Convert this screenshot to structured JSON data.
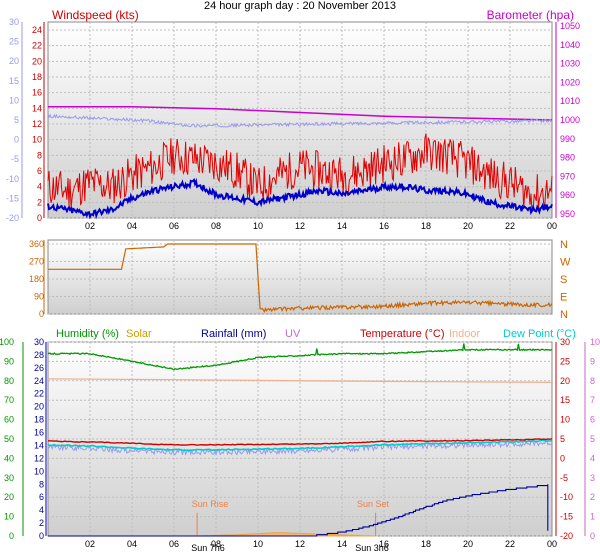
{
  "title": "24 hour graph day : 20 November 2013",
  "colors": {
    "wind": "#e00000",
    "gust_line": "#ff0000",
    "wind_avg": "#0000cc",
    "baro": "#cc00cc",
    "temp_axis_left": "#9999ee",
    "dir": "#cc6600",
    "humidity": "#009900",
    "solar": "#c8a000",
    "rain": "#000099",
    "uv": "#cc66cc",
    "temperature": "#cc0000",
    "indoor": "#f0b090",
    "dewpoint": "#00cccc",
    "feels": "#9999ee",
    "sun_marker": "#f08040"
  },
  "x_ticks": [
    "02",
    "04",
    "06",
    "08",
    "10",
    "12",
    "14",
    "16",
    "18",
    "20",
    "22",
    "00"
  ],
  "panel1": {
    "legend_left": "Windspeed (kts)",
    "legend_right": "Barometer (hpa)",
    "left_outer_ticks": [
      "-20",
      "-15",
      "-10",
      "-5",
      "0",
      "5",
      "10",
      "15",
      "20",
      "25",
      "30"
    ],
    "left_inner_ticks": [
      "0",
      "2",
      "4",
      "6",
      "8",
      "10",
      "12",
      "14",
      "16",
      "18",
      "20",
      "22",
      "24"
    ],
    "right_ticks": [
      "950",
      "960",
      "970",
      "980",
      "990",
      "1000",
      "1010",
      "1020",
      "1030",
      "1040",
      "1050"
    ]
  },
  "panel2": {
    "left_ticks": [
      "0",
      "90",
      "180",
      "270",
      "360"
    ],
    "right_ticks": [
      "N",
      "E",
      "S",
      "W",
      "N"
    ]
  },
  "panel3": {
    "legend": [
      "Humidity (%)",
      "Solar",
      "Rainfall (mm)",
      "UV",
      "Temperature (°C)",
      "Indoor",
      "Dew Point (°C)"
    ],
    "left_outer_ticks": [
      "0",
      "10",
      "20",
      "30",
      "40",
      "50",
      "60",
      "70",
      "80",
      "90",
      "100"
    ],
    "left_inner_ticks": [
      "0",
      "2",
      "4",
      "6",
      "8",
      "10",
      "12",
      "14",
      "16",
      "18",
      "20",
      "22",
      "24",
      "26",
      "28",
      "30"
    ],
    "right_inner_ticks": [
      "-20",
      "-15",
      "-10",
      "-5",
      "0",
      "5",
      "10",
      "15",
      "20",
      "25",
      "30"
    ],
    "right_outer_ticks": [
      "0",
      "1",
      "2",
      "3",
      "4",
      "5",
      "6",
      "7",
      "8",
      "9",
      "10"
    ],
    "sunrise_label": "Sun Rise",
    "sunset_label": "Sun Set",
    "sunrise_time": "Sun 7h6",
    "sunset_time": "Sun 3h6"
  },
  "chart_data": [
    {
      "type": "line",
      "x_unit": "hour of day",
      "series": [
        {
          "name": "Windspeed (kts)",
          "x": [
            0,
            1,
            2,
            3,
            4,
            5,
            6,
            7,
            8,
            9,
            10,
            11,
            12,
            13,
            14,
            15,
            16,
            17,
            18,
            19,
            20,
            21,
            22,
            23,
            24
          ],
          "y": [
            4,
            3.5,
            4.5,
            4,
            5.5,
            6.5,
            8,
            7.5,
            7,
            6,
            4,
            5.5,
            6.5,
            6,
            5.5,
            6,
            7,
            7.5,
            8.5,
            8,
            7,
            5.5,
            4.5,
            3,
            3.5
          ]
        },
        {
          "name": "Wind average (kts)",
          "x": [
            0,
            1,
            2,
            3,
            4,
            5,
            6,
            7,
            8,
            9,
            10,
            11,
            12,
            13,
            14,
            15,
            16,
            17,
            18,
            19,
            20,
            21,
            22,
            23,
            24
          ],
          "y": [
            1.5,
            1,
            0.5,
            1,
            2.5,
            3.5,
            4,
            4.5,
            3,
            2.5,
            2,
            2.5,
            3,
            3.5,
            3,
            3.5,
            4,
            4,
            3.5,
            3.5,
            3,
            2,
            1.5,
            1,
            1.5
          ]
        },
        {
          "name": "Barometer (hpa)",
          "x": [
            0,
            4,
            8,
            12,
            16,
            20,
            24
          ],
          "y": [
            1007,
            1007,
            1006,
            1004,
            1002,
            1001,
            1000
          ]
        }
      ],
      "ylim_left": [
        0,
        24
      ],
      "ylim_right": [
        950,
        1050
      ]
    },
    {
      "type": "line",
      "x_unit": "hour of day",
      "series": [
        {
          "name": "Wind direction (deg)",
          "x": [
            0,
            3.5,
            3.7,
            5.5,
            5.7,
            9.9,
            10.1,
            12,
            14,
            16,
            18,
            20,
            22,
            24
          ],
          "y": [
            230,
            230,
            335,
            345,
            360,
            360,
            20,
            30,
            35,
            40,
            55,
            60,
            50,
            45
          ]
        }
      ],
      "ylim": [
        0,
        360
      ]
    },
    {
      "type": "line",
      "x_unit": "hour of day",
      "series": [
        {
          "name": "Humidity (%)",
          "x": [
            0,
            2,
            4,
            6,
            8,
            10,
            12,
            14,
            16,
            18,
            20,
            22,
            24
          ],
          "y": [
            94,
            94,
            90,
            86,
            88,
            92,
            93,
            94,
            94,
            95,
            96,
            96,
            96
          ]
        },
        {
          "name": "Temperature (°C)",
          "x": [
            0,
            2,
            4,
            6,
            8,
            10,
            12,
            14,
            16,
            18,
            20,
            22,
            24
          ],
          "y": [
            4.5,
            4.2,
            3.9,
            3.5,
            3.5,
            3.6,
            3.7,
            3.9,
            4.4,
            4.5,
            4.6,
            4.8,
            5
          ]
        },
        {
          "name": "Indoor",
          "x": [
            0,
            6,
            12,
            18,
            24
          ],
          "y": [
            20.5,
            20.3,
            20,
            19.8,
            19.6
          ]
        },
        {
          "name": "Dew Point (°C)",
          "x": [
            0,
            2,
            4,
            6,
            8,
            10,
            12,
            14,
            16,
            18,
            20,
            22,
            24
          ],
          "y": [
            3.5,
            3.2,
            2.6,
            2.2,
            2.2,
            2.4,
            2.6,
            3,
            3.5,
            3.8,
            4,
            4.3,
            4.6
          ]
        },
        {
          "name": "Rainfall (mm)",
          "x": [
            0,
            12.5,
            14,
            15,
            16,
            17,
            18,
            19,
            20,
            21,
            22,
            23,
            23.8
          ],
          "y": [
            0,
            0,
            0.6,
            1.3,
            2.2,
            3.3,
            4.5,
            5.5,
            6.2,
            6.7,
            7.2,
            7.6,
            7.9
          ]
        },
        {
          "name": "Solar",
          "x": [
            7.1,
            9,
            11,
            12.5,
            15.6
          ],
          "y": [
            0,
            0.3,
            0.8,
            0.5,
            0
          ]
        }
      ],
      "ylim_humidity": [
        0,
        100
      ],
      "ylim_temperature": [
        -20,
        30
      ],
      "ylim_rain": [
        0,
        30
      ]
    }
  ]
}
